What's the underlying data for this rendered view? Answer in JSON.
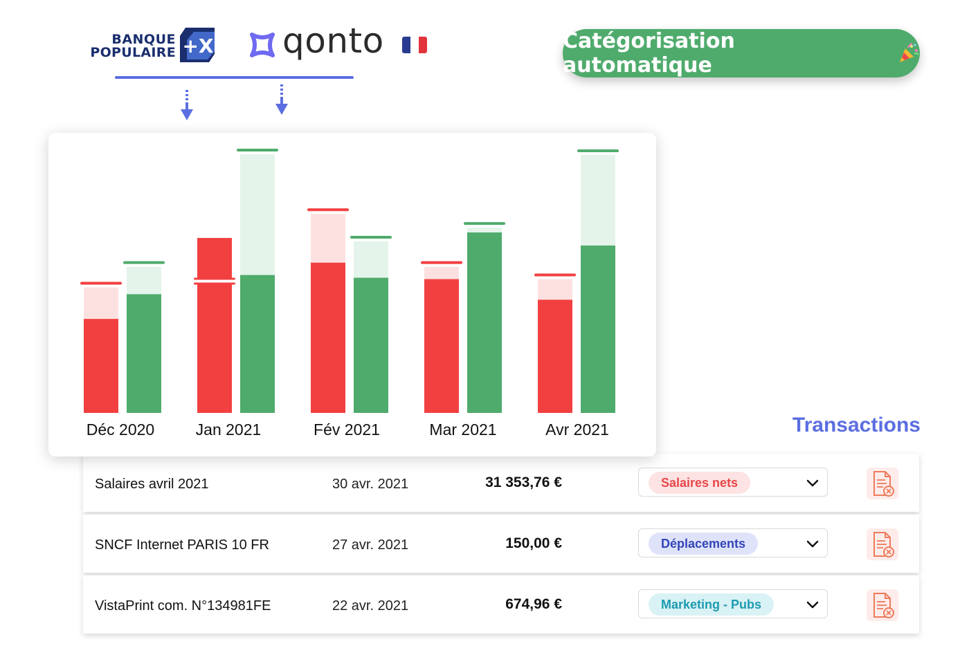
{
  "logos": {
    "banque_populaire": {
      "line1": "BANQUE",
      "line2": "POPULAIRE",
      "mark": "+X"
    },
    "qonto": {
      "word": "qonto"
    },
    "flag": [
      "#2a3b8f",
      "#ffffff",
      "#e2343c"
    ]
  },
  "header": {
    "button_label": "Catégorisation automatique",
    "button_icon": "party-popper-icon"
  },
  "colors": {
    "accent": "#5b6ee1",
    "expense": "#f24041",
    "expense_light": "#fde1e1",
    "income": "#4fab6c",
    "income_light": "#e4f4ea"
  },
  "chart_data": {
    "type": "bar",
    "categories": [
      "Déc 2020",
      "Jan 2021",
      "Fév 2021",
      "Mar 2021",
      "Avr 2021"
    ],
    "series": [
      {
        "values": [
          137,
          255,
          219,
          195,
          165
        ],
        "forecast": [
          183,
          192,
          290,
          213,
          195
        ]
      },
      {
        "values": [
          173,
          201,
          197,
          263,
          244
        ],
        "forecast": [
          213,
          377,
          250,
          270,
          376
        ]
      }
    ],
    "ylim": [
      0,
      380
    ],
    "grid": false
  },
  "transactions": {
    "title": "Transactions",
    "rows": [
      {
        "label": "Salaires avril 2021",
        "date": "30 avr. 2021",
        "amount": "31 353,76 €",
        "category": "Salaires nets",
        "badge_bg": "#fde3e3",
        "badge_fg": "#e8474b"
      },
      {
        "label": "SNCF Internet PARIS 10 FR",
        "date": "27 avr. 2021",
        "amount": "150,00 €",
        "category": "Déplacements",
        "badge_bg": "#dfe3fa",
        "badge_fg": "#3345b6"
      },
      {
        "label": "VistaPrint com. N°134981FE",
        "date": "22 avr. 2021",
        "amount": "674,96 €",
        "category": "Marketing - Pubs",
        "badge_bg": "#d9f2f5",
        "badge_fg": "#1d9bb0"
      }
    ]
  }
}
